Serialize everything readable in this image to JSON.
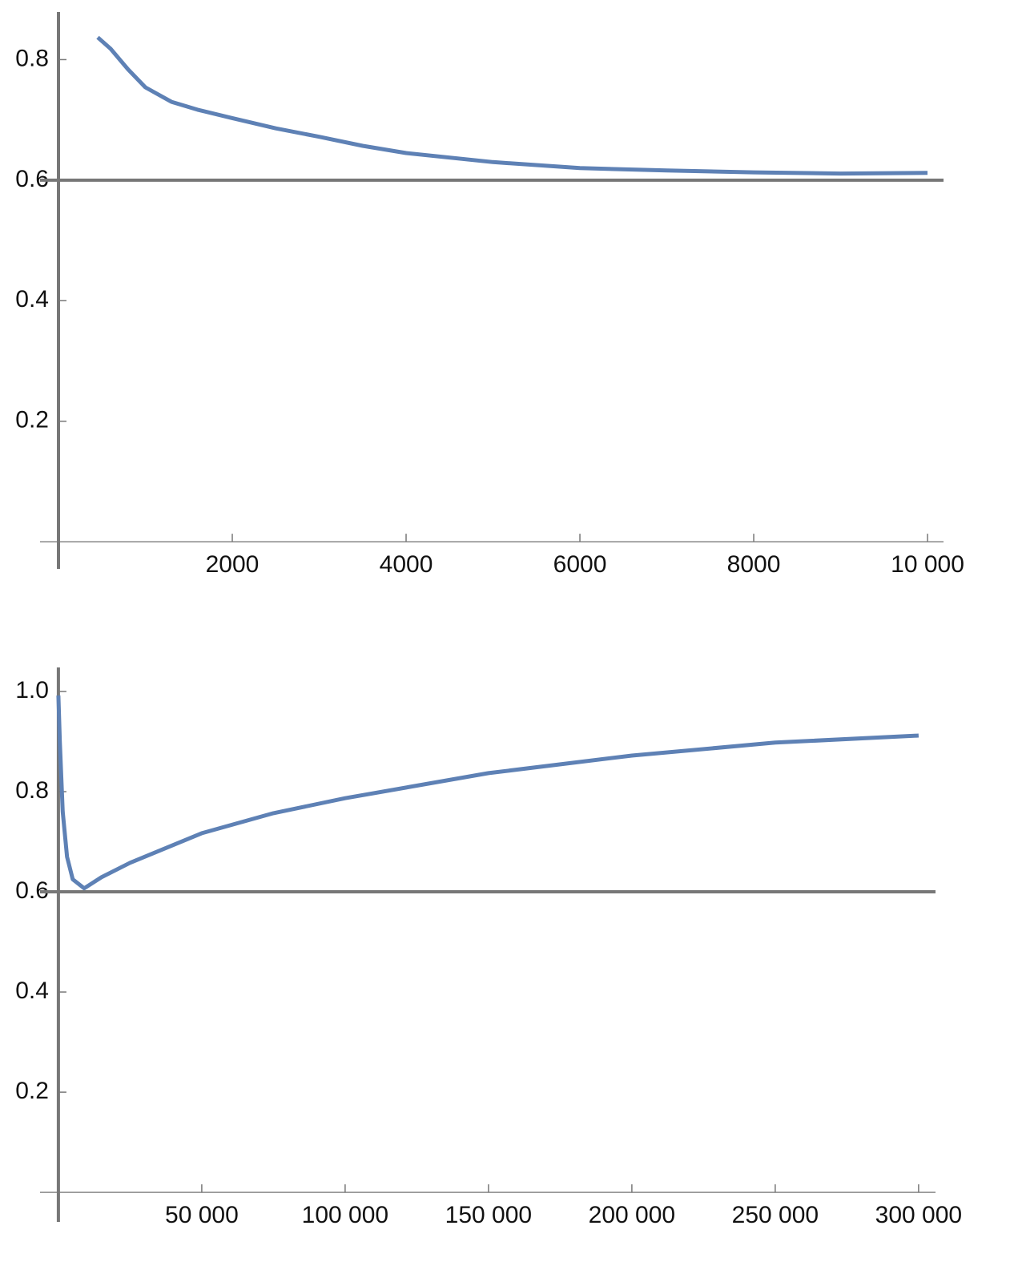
{
  "chart_data": [
    {
      "type": "line",
      "x": [
        452,
        600,
        800,
        1000,
        1300,
        1600,
        2000,
        2500,
        3000,
        3500,
        4000,
        5000,
        6000,
        7000,
        8000,
        9000,
        10000
      ],
      "series": [
        {
          "color": "#5e81b5",
          "values": [
            0.837,
            0.818,
            0.784,
            0.754,
            0.73,
            0.717,
            0.703,
            0.686,
            0.672,
            0.657,
            0.645,
            0.63,
            0.62,
            0.616,
            0.613,
            0.611,
            0.612
          ]
        }
      ],
      "hlines": [
        0.6
      ],
      "xlim": [
        -212,
        10184
      ],
      "ylim": [
        -0.045,
        0.879
      ],
      "xticks": [
        2000,
        4000,
        6000,
        8000,
        {
          "value": 10000,
          "label": "10 000"
        }
      ],
      "yticks": [
        0.2,
        0.4,
        0.6,
        0.8
      ]
    },
    {
      "type": "line",
      "x": [
        0,
        500,
        1500,
        3000,
        5000,
        9000,
        15000,
        25000,
        50000,
        75000,
        100000,
        150000,
        200000,
        250000,
        300000
      ],
      "series": [
        {
          "color": "#5e81b5",
          "values": [
            0.992,
            0.9,
            0.76,
            0.67,
            0.625,
            0.607,
            0.629,
            0.658,
            0.717,
            0.757,
            0.787,
            0.837,
            0.872,
            0.898,
            0.912
          ]
        }
      ],
      "hlines": [
        0.6
      ],
      "xlim": [
        -6400,
        305900
      ],
      "ylim": [
        -0.059,
        1.048
      ],
      "xticks": [
        {
          "value": 50000,
          "label": "50 000"
        },
        {
          "value": 100000,
          "label": "100 000"
        },
        {
          "value": 150000,
          "label": "150 000"
        },
        {
          "value": 200000,
          "label": "200 000"
        },
        {
          "value": 250000,
          "label": "250 000"
        },
        {
          "value": 300000,
          "label": "300 000"
        }
      ],
      "yticks": [
        0.2,
        0.4,
        0.6,
        0.8,
        {
          "value": 1,
          "label": "1.0"
        }
      ]
    }
  ]
}
